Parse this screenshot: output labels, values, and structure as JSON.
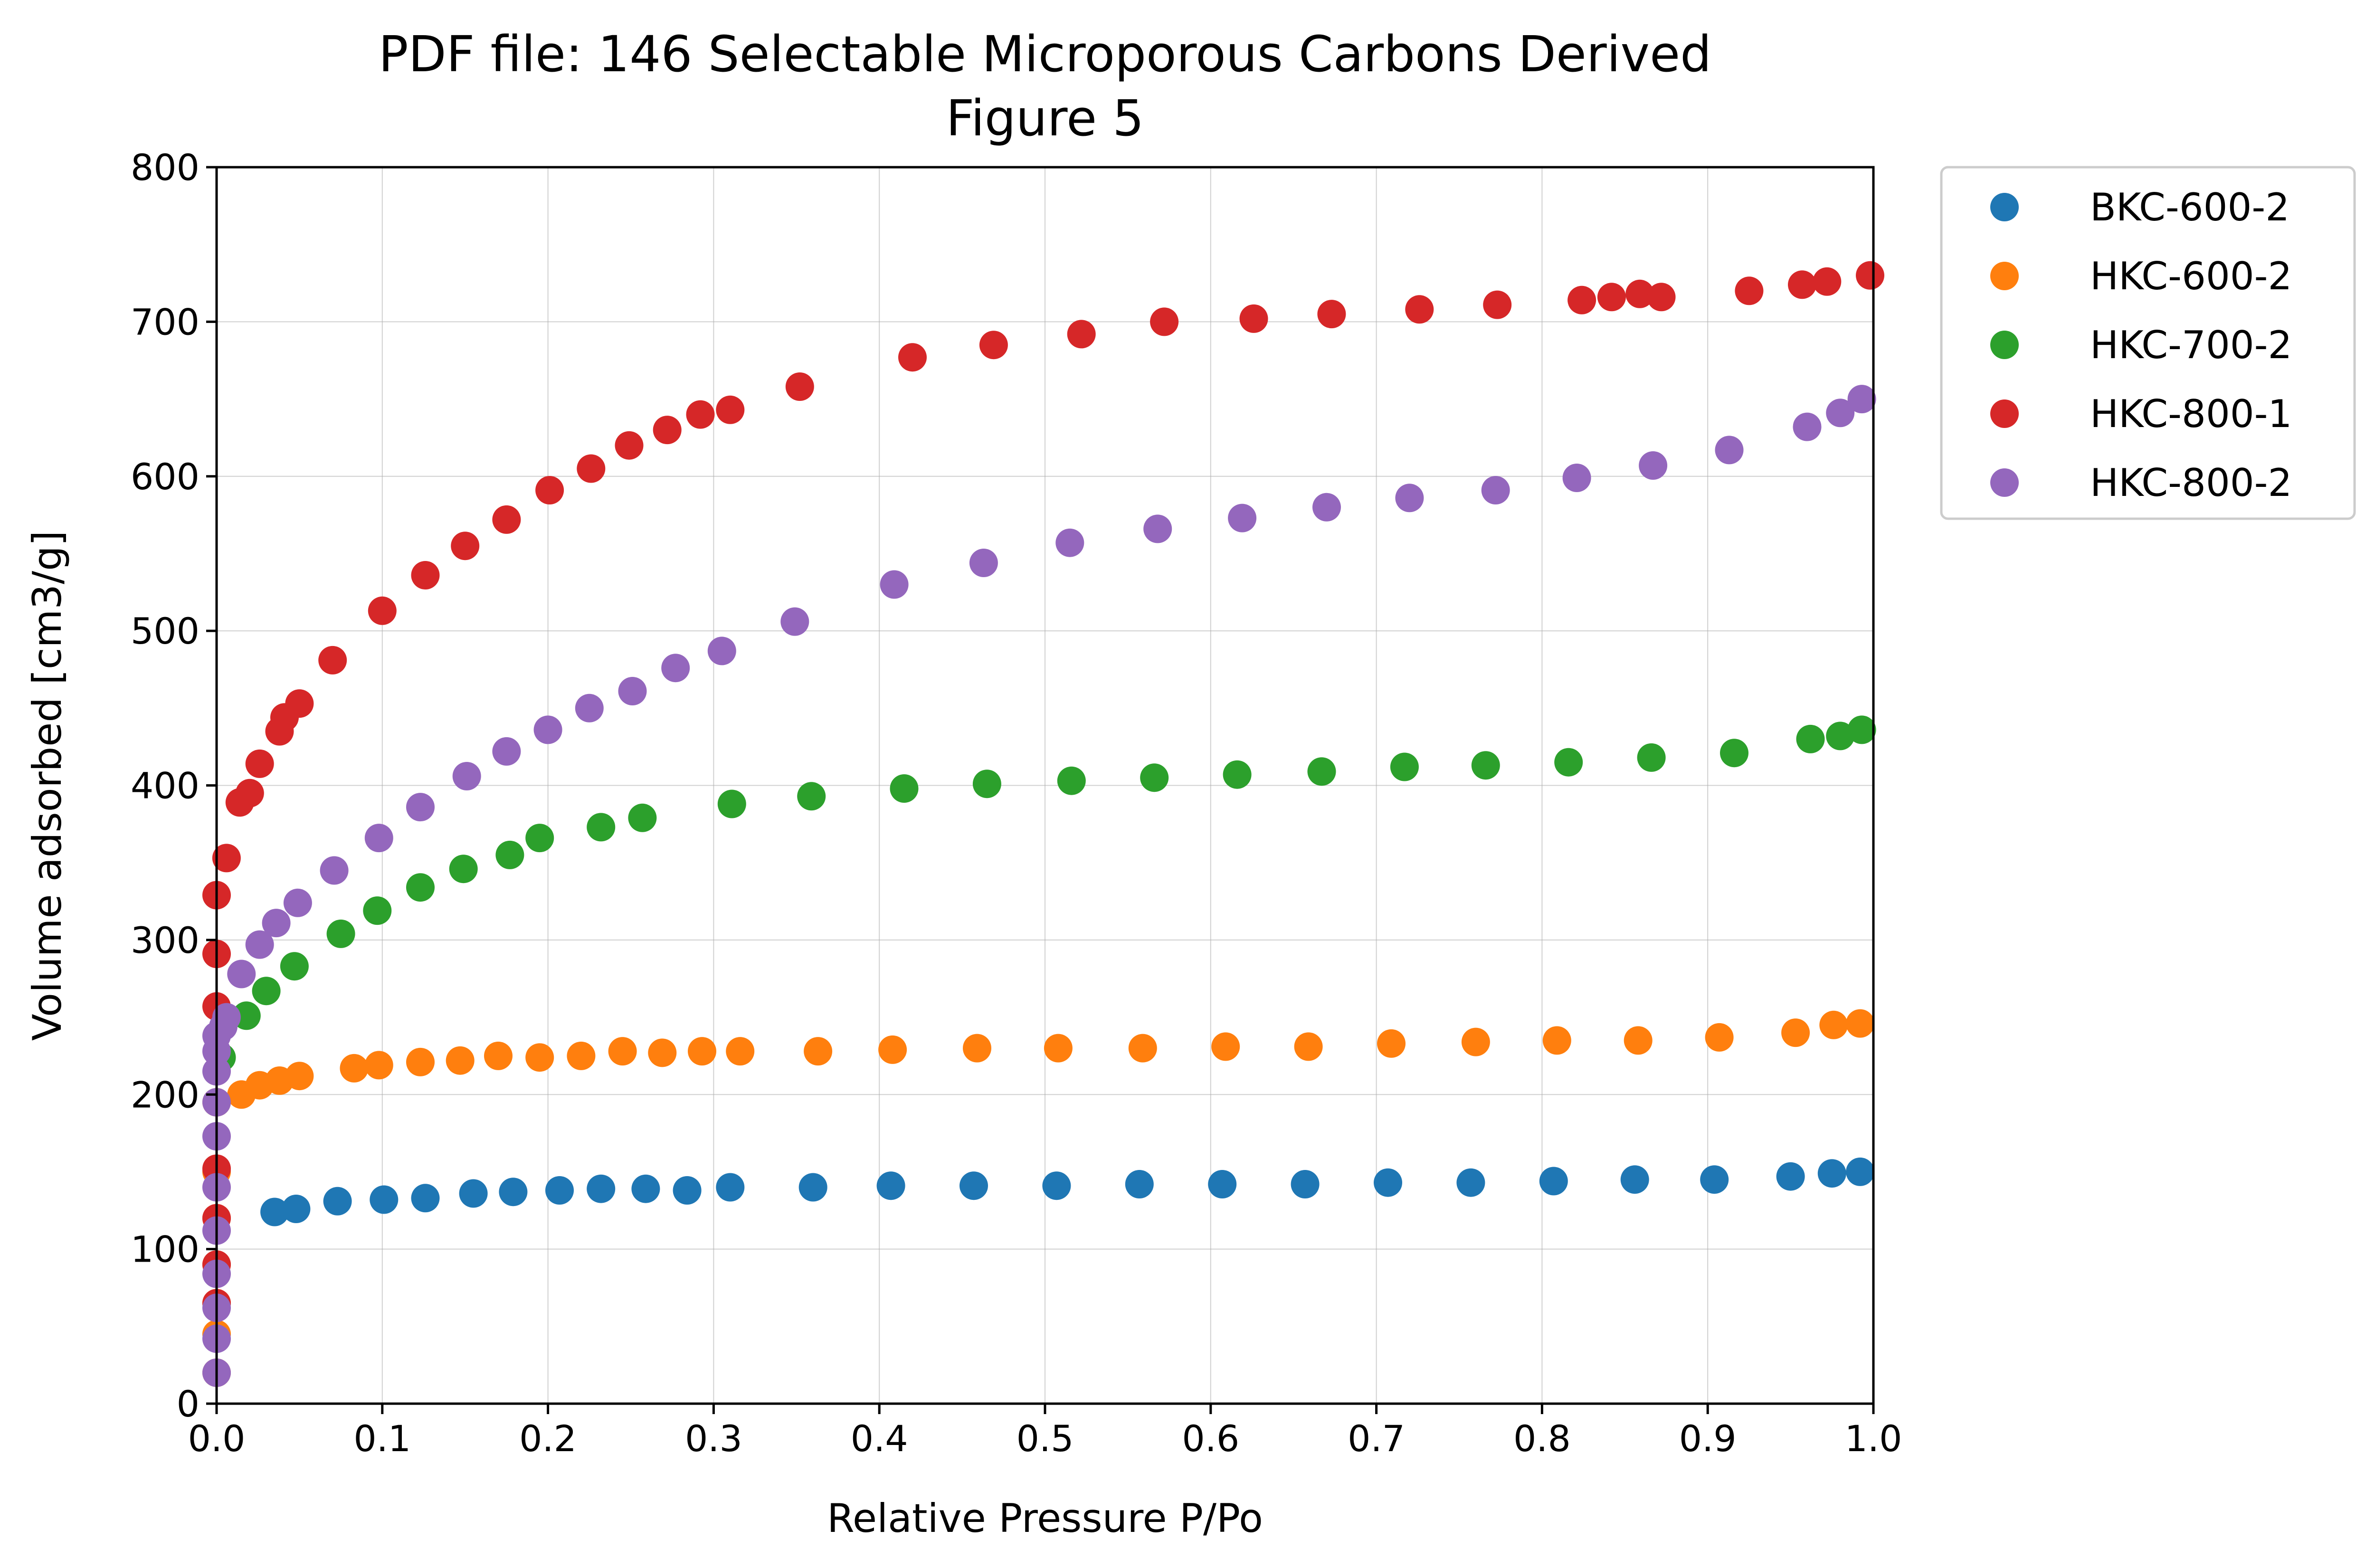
{
  "chart_data": {
    "type": "scatter",
    "title": "PDF file: 146 Selectable Microporous Carbons Derived",
    "subtitle": "Figure 5",
    "xlabel": "Relative Pressure P/Po",
    "ylabel": "Volume adsorbed [cm3/g]",
    "xlim": [
      0.0,
      1.0
    ],
    "ylim": [
      0,
      800
    ],
    "xticks": [
      "0.0",
      "0.1",
      "0.2",
      "0.3",
      "0.4",
      "0.5",
      "0.6",
      "0.7",
      "0.8",
      "0.9",
      "1.0"
    ],
    "yticks": [
      "0",
      "100",
      "200",
      "300",
      "400",
      "500",
      "600",
      "700",
      "800"
    ],
    "grid": true,
    "legend_position": "outside-top-right",
    "series": [
      {
        "name": "BKC-600-2",
        "color": "#1f77b4",
        "x": [
          0.035,
          0.048,
          0.073,
          0.101,
          0.126,
          0.155,
          0.179,
          0.207,
          0.232,
          0.259,
          0.284,
          0.31,
          0.36,
          0.407,
          0.457,
          0.507,
          0.557,
          0.607,
          0.657,
          0.707,
          0.757,
          0.807,
          0.856,
          0.904,
          0.95,
          0.975,
          0.992
        ],
        "y": [
          124,
          126,
          131,
          132,
          133,
          136,
          137,
          138,
          139,
          139,
          138,
          140,
          140,
          141,
          141,
          141,
          142,
          142,
          142,
          143,
          143,
          144,
          145,
          145,
          147,
          149,
          150
        ]
      },
      {
        "name": "HKC-600-2",
        "color": "#ff7f0e",
        "x": [
          0.015,
          0.026,
          0.038,
          0.05,
          0.083,
          0.098,
          0.123,
          0.147,
          0.17,
          0.195,
          0.22,
          0.245,
          0.269,
          0.293,
          0.316,
          0.363,
          0.408,
          0.459,
          0.508,
          0.559,
          0.609,
          0.659,
          0.709,
          0.76,
          0.809,
          0.858,
          0.907,
          0.953,
          0.976,
          0.992
        ],
        "y": [
          200,
          206,
          209,
          212,
          217,
          219,
          221,
          222,
          225,
          224,
          225,
          228,
          227,
          228,
          228,
          228,
          229,
          230,
          230,
          230,
          231,
          231,
          233,
          234,
          235,
          235,
          237,
          240,
          245,
          246
        ],
        "x_axis_hugging": [
          0.0,
          0.0,
          0.0,
          0.0,
          0.0,
          0.0,
          0.0
        ],
        "y_axis_hugging": [
          20,
          45,
          65,
          90,
          120,
          150,
          195
        ]
      },
      {
        "name": "HKC-700-2",
        "color": "#2ca02c",
        "x": [
          0.003,
          0.018,
          0.03,
          0.047,
          0.075,
          0.097,
          0.123,
          0.149,
          0.177,
          0.195,
          0.232,
          0.257,
          0.311,
          0.359,
          0.415,
          0.465,
          0.516,
          0.566,
          0.616,
          0.667,
          0.717,
          0.766,
          0.816,
          0.866,
          0.916,
          0.962,
          0.98,
          0.993
        ],
        "y": [
          224,
          251,
          267,
          283,
          304,
          319,
          334,
          346,
          355,
          366,
          373,
          379,
          388,
          393,
          398,
          401,
          403,
          405,
          407,
          409,
          412,
          413,
          415,
          418,
          421,
          430,
          432,
          436
        ]
      },
      {
        "name": "HKC-800-1",
        "color": "#d62728",
        "x": [
          0.0,
          0.0,
          0.0,
          0.0,
          0.0,
          0.0,
          0.0,
          0.006,
          0.014,
          0.02,
          0.026,
          0.038,
          0.041,
          0.05,
          0.07,
          0.1,
          0.126,
          0.15,
          0.175,
          0.201,
          0.226,
          0.249,
          0.272,
          0.292,
          0.31,
          0.352,
          0.42,
          0.469,
          0.522,
          0.572,
          0.626,
          0.673,
          0.726,
          0.773,
          0.824,
          0.842,
          0.859,
          0.872,
          0.925,
          0.957,
          0.972,
          0.998
        ],
        "y": [
          65,
          90,
          120,
          152,
          257,
          291,
          329,
          353,
          389,
          395,
          414,
          435,
          444,
          453,
          481,
          513,
          536,
          555,
          572,
          591,
          605,
          620,
          630,
          640,
          643,
          658,
          677,
          685,
          692,
          700,
          702,
          705,
          708,
          711,
          714,
          716,
          718,
          716,
          720,
          724,
          726,
          730
        ]
      },
      {
        "name": "HKC-800-2",
        "color": "#9467bd",
        "x": [
          0.0,
          0.0,
          0.0,
          0.0,
          0.0,
          0.0,
          0.0,
          0.0,
          0.0,
          0.0,
          0.0,
          0.004,
          0.006,
          0.015,
          0.026,
          0.036,
          0.049,
          0.071,
          0.098,
          0.123,
          0.151,
          0.175,
          0.2,
          0.225,
          0.251,
          0.277,
          0.305,
          0.349,
          0.409,
          0.463,
          0.515,
          0.568,
          0.619,
          0.67,
          0.72,
          0.772,
          0.821,
          0.867,
          0.913,
          0.96,
          0.98,
          0.993
        ],
        "y": [
          20,
          42,
          62,
          84,
          112,
          140,
          173,
          195,
          215,
          228,
          238,
          244,
          250,
          278,
          297,
          311,
          324,
          345,
          366,
          386,
          406,
          422,
          436,
          450,
          461,
          476,
          487,
          506,
          530,
          544,
          557,
          566,
          573,
          580,
          586,
          591,
          599,
          607,
          617,
          632,
          641,
          650
        ]
      }
    ]
  }
}
